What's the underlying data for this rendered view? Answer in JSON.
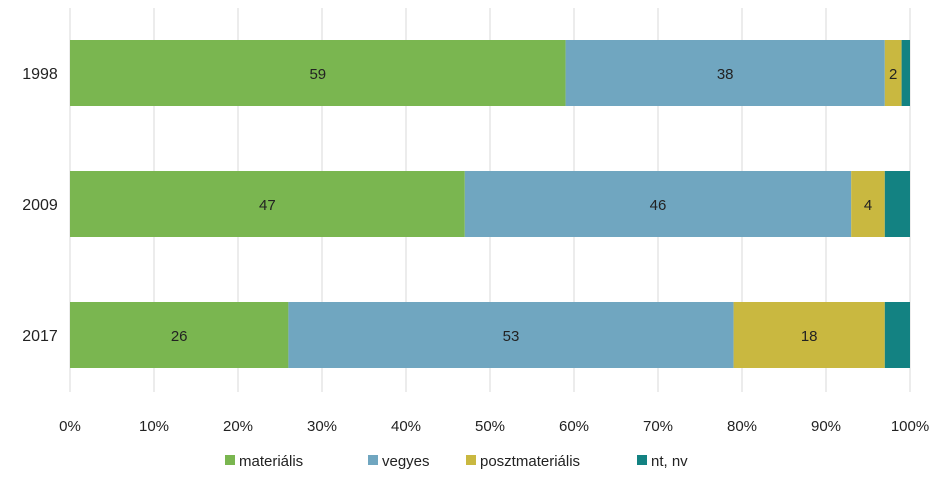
{
  "chart_data": {
    "type": "bar",
    "orientation": "horizontal",
    "stacked": true,
    "title": "",
    "xlabel": "",
    "ylabel": "",
    "categories": [
      "1998",
      "2009",
      "2017"
    ],
    "series": [
      {
        "name": "materiális",
        "values": [
          59,
          47,
          26
        ],
        "labels": [
          "59",
          "47",
          "26"
        ],
        "color": "#7ab650"
      },
      {
        "name": "vegyes",
        "values": [
          38,
          46,
          53
        ],
        "labels": [
          "38",
          "46",
          "53"
        ],
        "color": "#70a6c0"
      },
      {
        "name": "posztmateriális",
        "values": [
          2,
          4,
          18
        ],
        "labels": [
          "2",
          "4",
          "18"
        ],
        "color": "#c9b840"
      },
      {
        "name": "nt, nv",
        "values": [
          1,
          3,
          3
        ],
        "labels": [
          "",
          "",
          ""
        ],
        "color": "#138282"
      }
    ],
    "xlim": [
      0,
      100
    ],
    "x_ticks": [
      "0%",
      "10%",
      "20%",
      "30%",
      "40%",
      "50%",
      "60%",
      "70%",
      "80%",
      "90%",
      "100%"
    ],
    "grid": true,
    "legend_position": "bottom"
  }
}
